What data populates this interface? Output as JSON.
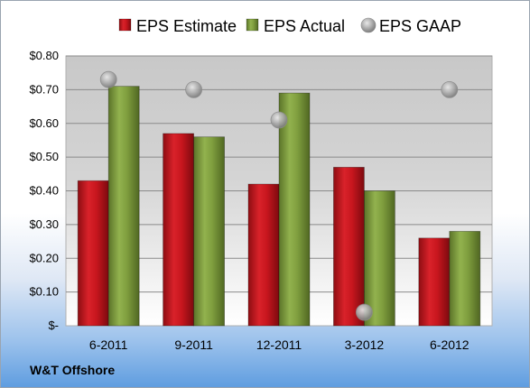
{
  "company_label": "W&T Offshore",
  "chart_data": {
    "type": "bar",
    "categories": [
      "6-2011",
      "9-2011",
      "12-2011",
      "3-2012",
      "6-2012"
    ],
    "series": [
      {
        "name": "EPS Estimate",
        "kind": "bar",
        "color": "#c0141c",
        "values": [
          0.43,
          0.57,
          0.42,
          0.47,
          0.26
        ]
      },
      {
        "name": "EPS Actual",
        "kind": "bar",
        "color": "#7a9a3a",
        "values": [
          0.71,
          0.56,
          0.69,
          0.4,
          0.28
        ]
      },
      {
        "name": "EPS GAAP",
        "kind": "marker",
        "color": "#a8a8a8",
        "values": [
          0.73,
          0.7,
          0.61,
          0.04,
          0.7
        ]
      }
    ],
    "ylim": [
      0,
      0.8
    ],
    "yticks": [
      0,
      0.1,
      0.2,
      0.3,
      0.4,
      0.5,
      0.6,
      0.7,
      0.8
    ],
    "ytick_labels": [
      "$-",
      "$0.10",
      "$0.20",
      "$0.30",
      "$0.40",
      "$0.50",
      "$0.60",
      "$0.70",
      "$0.80"
    ],
    "legend_position": "top",
    "grid": true,
    "title": "",
    "xlabel": "",
    "ylabel": ""
  }
}
